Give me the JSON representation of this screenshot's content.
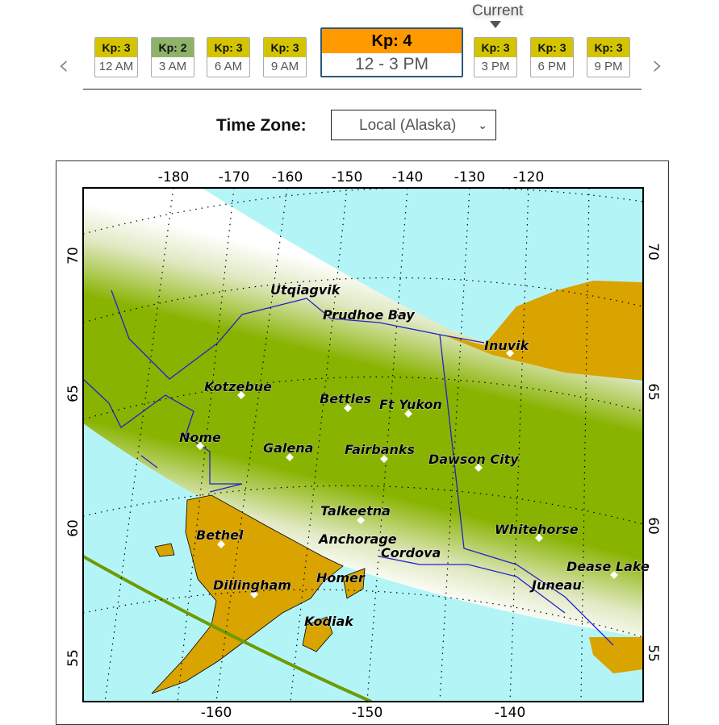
{
  "timeline": {
    "current_label": "Current",
    "slots": [
      {
        "kp": "Kp: 3",
        "time": "12 AM",
        "color": "#d4c400"
      },
      {
        "kp": "Kp: 2",
        "time": "3 AM",
        "color": "#8fb26a"
      },
      {
        "kp": "Kp: 3",
        "time": "6 AM",
        "color": "#d4c400"
      },
      {
        "kp": "Kp: 3",
        "time": "9 AM",
        "color": "#d4c400"
      },
      {
        "kp": "Kp: 4",
        "time": "12 - 3 PM",
        "color": "#ff9900",
        "selected": true
      },
      {
        "kp": "Kp: 3",
        "time": "3 PM",
        "color": "#d4c400"
      },
      {
        "kp": "Kp: 3",
        "time": "6 PM",
        "color": "#d4c400"
      },
      {
        "kp": "Kp: 3",
        "time": "9 PM",
        "color": "#d4c400"
      }
    ],
    "prev_icon": "chevron-left-icon",
    "next_icon": "chevron-right-icon"
  },
  "timezone": {
    "label": "Time Zone:",
    "value": "Local (Alaska)"
  },
  "map": {
    "colors": {
      "ocean": "#b3f5f7",
      "land": "#d9a300",
      "aurora": "#88b300",
      "coast": "#2222cc"
    },
    "top_ticks": [
      "-180",
      "-170",
      "-160",
      "-150",
      "-140",
      "-130",
      "-120"
    ],
    "bottom_ticks": [
      "-160",
      "-150",
      "-140"
    ],
    "lat_ticks": [
      "70",
      "65",
      "60",
      "55"
    ],
    "cities": [
      "Utqiagvik",
      "Prudhoe Bay",
      "Inuvik",
      "Kotzebue",
      "Bettles",
      "Ft Yukon",
      "Nome",
      "Galena",
      "Fairbanks",
      "Dawson City",
      "Talkeetna",
      "Whitehorse",
      "Bethel",
      "Anchorage",
      "Cordova",
      "Dease Lake",
      "Dillingham",
      "Homer",
      "Juneau",
      "Kodiak"
    ]
  }
}
